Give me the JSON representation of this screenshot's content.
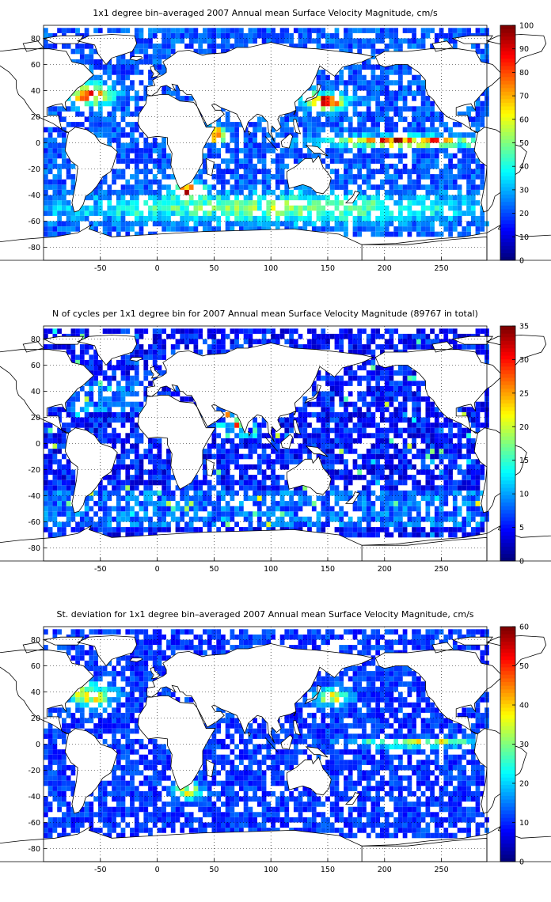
{
  "figure": {
    "panels": [
      {
        "title": "1x1 degree bin–averaged 2007 Annual mean Surface Velocity Magnitude, cm/s",
        "colorbar": {
          "min": 0,
          "max": 100,
          "ticks": [
            "0",
            "10",
            "20",
            "30",
            "40",
            "50",
            "60",
            "70",
            "80",
            "90",
            "100"
          ]
        }
      },
      {
        "title": "N of cycles per 1x1 degree bin for 2007 Annual mean Surface Velocity Magnitude (89767 in total)",
        "colorbar": {
          "min": 0,
          "max": 35,
          "ticks": [
            "0",
            "5",
            "10",
            "15",
            "20",
            "25",
            "30",
            "35"
          ]
        }
      },
      {
        "title": "St. deviation for 1x1 degree bin–averaged 2007 Annual mean Surface Velocity Magnitude, cm/s",
        "colorbar": {
          "min": 0,
          "max": 60,
          "ticks": [
            "0",
            "10",
            "20",
            "30",
            "40",
            "50",
            "60"
          ]
        }
      }
    ],
    "x_ticks": [
      "-50",
      "0",
      "50",
      "100",
      "150",
      "200",
      "250"
    ],
    "y_ticks": [
      "80",
      "60",
      "40",
      "20",
      "0",
      "-20",
      "-40",
      "-60",
      "-80"
    ]
  },
  "chart_data": [
    {
      "type": "heatmap",
      "title": "1x1 degree bin–averaged 2007 Annual mean Surface Velocity Magnitude, cm/s",
      "xlim": [
        -100,
        290
      ],
      "ylim": [
        -90,
        90
      ],
      "colormap": "jet",
      "clim": [
        0,
        100
      ],
      "colorbar_ticks": [
        0,
        10,
        20,
        30,
        40,
        50,
        60,
        70,
        80,
        90,
        100
      ],
      "grid": true,
      "features": [
        {
          "region": "Equatorial Pacific",
          "x": [
            160,
            280
          ],
          "y": [
            -3,
            5
          ],
          "level": 75
        },
        {
          "region": "Gulf Stream",
          "x": [
            -80,
            -40
          ],
          "y": [
            30,
            45
          ],
          "level": 70
        },
        {
          "region": "Kuroshio",
          "x": [
            130,
            165
          ],
          "y": [
            25,
            38
          ],
          "level": 75
        },
        {
          "region": "Agulhas Current",
          "x": [
            15,
            40
          ],
          "y": [
            -42,
            -30
          ],
          "level": 65
        },
        {
          "region": "Antarctic Circumpolar Current",
          "x": [
            -70,
            280
          ],
          "y": [
            -60,
            -40
          ],
          "level": 35
        },
        {
          "region": "Somali Current",
          "x": [
            45,
            60
          ],
          "y": [
            0,
            12
          ],
          "level": 70
        }
      ]
    },
    {
      "type": "heatmap",
      "title": "N of cycles per 1x1 degree bin for 2007 Annual mean Surface Velocity Magnitude (89767 in total)",
      "xlim": [
        -100,
        290
      ],
      "ylim": [
        -90,
        90
      ],
      "colormap": "jet",
      "clim": [
        0,
        35
      ],
      "colorbar_ticks": [
        0,
        5,
        10,
        15,
        20,
        25,
        30,
        35
      ],
      "grid": true,
      "total": 89767
    },
    {
      "type": "heatmap",
      "title": "St. deviation for 1x1 degree bin–averaged 2007 Annual mean Surface Velocity Magnitude, cm/s",
      "xlim": [
        -100,
        290
      ],
      "ylim": [
        -90,
        90
      ],
      "colormap": "jet",
      "clim": [
        0,
        60
      ],
      "colorbar_ticks": [
        0,
        10,
        20,
        30,
        40,
        50,
        60
      ],
      "grid": true,
      "features": [
        {
          "region": "Equatorial Pacific",
          "x": [
            180,
            280
          ],
          "y": [
            -2,
            4
          ],
          "level": 35
        },
        {
          "region": "Gulf Stream",
          "x": [
            -80,
            -40
          ],
          "y": [
            30,
            45
          ],
          "level": 35
        },
        {
          "region": "Kuroshio",
          "x": [
            140,
            170
          ],
          "y": [
            30,
            42
          ],
          "level": 30
        },
        {
          "region": "Agulhas Current",
          "x": [
            15,
            40
          ],
          "y": [
            -42,
            -30
          ],
          "level": 30
        }
      ]
    }
  ]
}
